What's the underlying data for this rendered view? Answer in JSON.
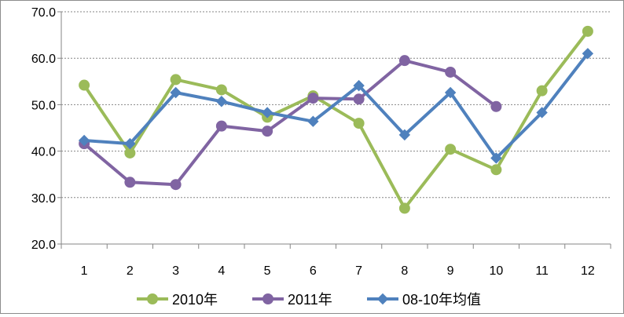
{
  "chart_data": {
    "type": "line",
    "categories": [
      "1",
      "2",
      "3",
      "4",
      "5",
      "6",
      "7",
      "8",
      "9",
      "10",
      "11",
      "12"
    ],
    "series": [
      {
        "name": "2010年",
        "color": "#9bbb59",
        "marker": "circle",
        "values": [
          54.2,
          39.6,
          55.4,
          53.2,
          47.3,
          51.9,
          46.0,
          27.7,
          40.4,
          36.0,
          53.0,
          65.8
        ]
      },
      {
        "name": "2011年",
        "color": "#8064a2",
        "marker": "circle",
        "values": [
          41.6,
          33.3,
          32.8,
          45.4,
          44.3,
          51.4,
          51.2,
          59.5,
          57.0,
          49.6,
          null,
          null
        ]
      },
      {
        "name": "08-10年均值",
        "color": "#4f81bd",
        "marker": "diamond",
        "values": [
          42.3,
          41.6,
          52.6,
          50.7,
          48.3,
          46.4,
          54.1,
          43.5,
          52.6,
          38.5,
          48.3,
          61.0
        ]
      }
    ],
    "yticks": [
      "20.0",
      "30.0",
      "40.0",
      "50.0",
      "60.0",
      "70.0"
    ],
    "ylim": [
      20,
      70
    ],
    "grid": "horizontal-dashed",
    "legend_position": "bottom"
  }
}
